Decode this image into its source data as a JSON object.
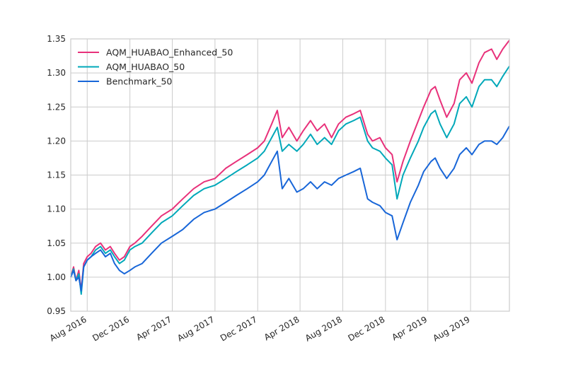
{
  "chart_data": {
    "type": "line",
    "title": "",
    "xlabel": "",
    "ylabel": "",
    "xlim": [
      "2016-06-15",
      "2019-11-20"
    ],
    "ylim": [
      0.95,
      1.35
    ],
    "grid": true,
    "legend_position": "upper-left",
    "x_ticks": [
      {
        "date": "2016-08-01",
        "label": "Aug 2016"
      },
      {
        "date": "2016-12-01",
        "label": "Dec 2016"
      },
      {
        "date": "2017-04-01",
        "label": "Apr 2017"
      },
      {
        "date": "2017-08-01",
        "label": "Aug 2017"
      },
      {
        "date": "2017-12-01",
        "label": "Dec 2017"
      },
      {
        "date": "2018-04-01",
        "label": "Apr 2018"
      },
      {
        "date": "2018-08-01",
        "label": "Aug 2018"
      },
      {
        "date": "2018-12-01",
        "label": "Dec 2018"
      },
      {
        "date": "2019-04-01",
        "label": "Apr 2019"
      },
      {
        "date": "2019-08-01",
        "label": "Aug 2019"
      }
    ],
    "y_ticks": [
      "0.95",
      "1.00",
      "1.05",
      "1.10",
      "1.15",
      "1.20",
      "1.25",
      "1.30",
      "1.35"
    ],
    "series": [
      {
        "name": "AQM_HUABAO_Enhanced_50",
        "color": "#e8317a",
        "points": [
          [
            "2016-06-15",
            1.0
          ],
          [
            "2016-06-23",
            1.015
          ],
          [
            "2016-06-30",
            0.995
          ],
          [
            "2016-07-08",
            1.01
          ],
          [
            "2016-07-15",
            0.98
          ],
          [
            "2016-07-22",
            1.02
          ],
          [
            "2016-08-01",
            1.03
          ],
          [
            "2016-08-12",
            1.035
          ],
          [
            "2016-08-25",
            1.045
          ],
          [
            "2016-09-08",
            1.05
          ],
          [
            "2016-09-22",
            1.04
          ],
          [
            "2016-10-06",
            1.045
          ],
          [
            "2016-10-18",
            1.035
          ],
          [
            "2016-11-01",
            1.025
          ],
          [
            "2016-11-15",
            1.03
          ],
          [
            "2016-12-01",
            1.045
          ],
          [
            "2016-12-15",
            1.05
          ],
          [
            "2017-01-05",
            1.06
          ],
          [
            "2017-02-01",
            1.075
          ],
          [
            "2017-03-01",
            1.09
          ],
          [
            "2017-04-01",
            1.1
          ],
          [
            "2017-05-01",
            1.115
          ],
          [
            "2017-06-01",
            1.13
          ],
          [
            "2017-07-01",
            1.14
          ],
          [
            "2017-08-01",
            1.145
          ],
          [
            "2017-09-01",
            1.16
          ],
          [
            "2017-10-01",
            1.17
          ],
          [
            "2017-11-01",
            1.18
          ],
          [
            "2017-12-01",
            1.19
          ],
          [
            "2017-12-20",
            1.2
          ],
          [
            "2018-01-10",
            1.225
          ],
          [
            "2018-01-26",
            1.245
          ],
          [
            "2018-02-09",
            1.205
          ],
          [
            "2018-02-28",
            1.22
          ],
          [
            "2018-03-23",
            1.2
          ],
          [
            "2018-04-10",
            1.215
          ],
          [
            "2018-05-01",
            1.23
          ],
          [
            "2018-05-20",
            1.215
          ],
          [
            "2018-06-10",
            1.225
          ],
          [
            "2018-06-30",
            1.205
          ],
          [
            "2018-07-20",
            1.225
          ],
          [
            "2018-08-10",
            1.235
          ],
          [
            "2018-09-01",
            1.24
          ],
          [
            "2018-09-20",
            1.245
          ],
          [
            "2018-10-11",
            1.21
          ],
          [
            "2018-10-25",
            1.2
          ],
          [
            "2018-11-15",
            1.205
          ],
          [
            "2018-12-01",
            1.19
          ],
          [
            "2018-12-20",
            1.18
          ],
          [
            "2019-01-03",
            1.14
          ],
          [
            "2019-01-20",
            1.17
          ],
          [
            "2019-02-10",
            1.2
          ],
          [
            "2019-03-05",
            1.23
          ],
          [
            "2019-03-20",
            1.25
          ],
          [
            "2019-04-10",
            1.275
          ],
          [
            "2019-04-22",
            1.28
          ],
          [
            "2019-05-06",
            1.26
          ],
          [
            "2019-05-25",
            1.235
          ],
          [
            "2019-06-15",
            1.255
          ],
          [
            "2019-07-01",
            1.29
          ],
          [
            "2019-07-20",
            1.3
          ],
          [
            "2019-08-05",
            1.285
          ],
          [
            "2019-08-25",
            1.315
          ],
          [
            "2019-09-10",
            1.33
          ],
          [
            "2019-09-30",
            1.335
          ],
          [
            "2019-10-15",
            1.32
          ],
          [
            "2019-11-01",
            1.335
          ],
          [
            "2019-11-20",
            1.348
          ]
        ]
      },
      {
        "name": "AQM_HUABAO_50",
        "color": "#00a8b9",
        "points": [
          [
            "2016-06-15",
            1.0
          ],
          [
            "2016-06-23",
            1.012
          ],
          [
            "2016-06-30",
            0.995
          ],
          [
            "2016-07-08",
            1.005
          ],
          [
            "2016-07-15",
            0.975
          ],
          [
            "2016-07-22",
            1.015
          ],
          [
            "2016-08-01",
            1.025
          ],
          [
            "2016-08-12",
            1.03
          ],
          [
            "2016-08-25",
            1.04
          ],
          [
            "2016-09-08",
            1.045
          ],
          [
            "2016-09-22",
            1.035
          ],
          [
            "2016-10-06",
            1.04
          ],
          [
            "2016-10-18",
            1.03
          ],
          [
            "2016-11-01",
            1.02
          ],
          [
            "2016-11-15",
            1.025
          ],
          [
            "2016-12-01",
            1.04
          ],
          [
            "2016-12-15",
            1.045
          ],
          [
            "2017-01-05",
            1.05
          ],
          [
            "2017-02-01",
            1.065
          ],
          [
            "2017-03-01",
            1.08
          ],
          [
            "2017-04-01",
            1.09
          ],
          [
            "2017-05-01",
            1.105
          ],
          [
            "2017-06-01",
            1.12
          ],
          [
            "2017-07-01",
            1.13
          ],
          [
            "2017-08-01",
            1.135
          ],
          [
            "2017-09-01",
            1.145
          ],
          [
            "2017-10-01",
            1.155
          ],
          [
            "2017-11-01",
            1.165
          ],
          [
            "2017-12-01",
            1.175
          ],
          [
            "2017-12-20",
            1.185
          ],
          [
            "2018-01-10",
            1.205
          ],
          [
            "2018-01-26",
            1.22
          ],
          [
            "2018-02-09",
            1.185
          ],
          [
            "2018-02-28",
            1.195
          ],
          [
            "2018-03-23",
            1.185
          ],
          [
            "2018-04-10",
            1.195
          ],
          [
            "2018-05-01",
            1.21
          ],
          [
            "2018-05-20",
            1.195
          ],
          [
            "2018-06-10",
            1.205
          ],
          [
            "2018-06-30",
            1.195
          ],
          [
            "2018-07-20",
            1.215
          ],
          [
            "2018-08-10",
            1.225
          ],
          [
            "2018-09-01",
            1.23
          ],
          [
            "2018-09-20",
            1.235
          ],
          [
            "2018-10-11",
            1.2
          ],
          [
            "2018-10-25",
            1.19
          ],
          [
            "2018-11-15",
            1.185
          ],
          [
            "2018-12-01",
            1.175
          ],
          [
            "2018-12-20",
            1.165
          ],
          [
            "2019-01-03",
            1.115
          ],
          [
            "2019-01-20",
            1.15
          ],
          [
            "2019-02-10",
            1.175
          ],
          [
            "2019-03-05",
            1.2
          ],
          [
            "2019-03-20",
            1.22
          ],
          [
            "2019-04-10",
            1.24
          ],
          [
            "2019-04-22",
            1.245
          ],
          [
            "2019-05-06",
            1.225
          ],
          [
            "2019-05-25",
            1.205
          ],
          [
            "2019-06-15",
            1.225
          ],
          [
            "2019-07-01",
            1.255
          ],
          [
            "2019-07-20",
            1.265
          ],
          [
            "2019-08-05",
            1.25
          ],
          [
            "2019-08-25",
            1.28
          ],
          [
            "2019-09-10",
            1.29
          ],
          [
            "2019-09-30",
            1.29
          ],
          [
            "2019-10-15",
            1.28
          ],
          [
            "2019-11-01",
            1.295
          ],
          [
            "2019-11-20",
            1.31
          ]
        ]
      },
      {
        "name": "Benchmark_50",
        "color": "#1866d8",
        "points": [
          [
            "2016-06-15",
            1.0
          ],
          [
            "2016-06-23",
            1.01
          ],
          [
            "2016-06-30",
            0.995
          ],
          [
            "2016-07-08",
            1.0
          ],
          [
            "2016-07-15",
            0.98
          ],
          [
            "2016-07-22",
            1.015
          ],
          [
            "2016-08-01",
            1.025
          ],
          [
            "2016-08-12",
            1.03
          ],
          [
            "2016-08-25",
            1.035
          ],
          [
            "2016-09-08",
            1.04
          ],
          [
            "2016-09-22",
            1.03
          ],
          [
            "2016-10-06",
            1.035
          ],
          [
            "2016-10-18",
            1.02
          ],
          [
            "2016-11-01",
            1.01
          ],
          [
            "2016-11-15",
            1.005
          ],
          [
            "2016-12-01",
            1.01
          ],
          [
            "2016-12-15",
            1.015
          ],
          [
            "2017-01-05",
            1.02
          ],
          [
            "2017-02-01",
            1.035
          ],
          [
            "2017-03-01",
            1.05
          ],
          [
            "2017-04-01",
            1.06
          ],
          [
            "2017-05-01",
            1.07
          ],
          [
            "2017-06-01",
            1.085
          ],
          [
            "2017-07-01",
            1.095
          ],
          [
            "2017-08-01",
            1.1
          ],
          [
            "2017-09-01",
            1.11
          ],
          [
            "2017-10-01",
            1.12
          ],
          [
            "2017-11-01",
            1.13
          ],
          [
            "2017-12-01",
            1.14
          ],
          [
            "2017-12-20",
            1.15
          ],
          [
            "2018-01-10",
            1.17
          ],
          [
            "2018-01-26",
            1.185
          ],
          [
            "2018-02-09",
            1.13
          ],
          [
            "2018-02-28",
            1.145
          ],
          [
            "2018-03-23",
            1.125
          ],
          [
            "2018-04-10",
            1.13
          ],
          [
            "2018-05-01",
            1.14
          ],
          [
            "2018-05-20",
            1.13
          ],
          [
            "2018-06-10",
            1.14
          ],
          [
            "2018-06-30",
            1.135
          ],
          [
            "2018-07-20",
            1.145
          ],
          [
            "2018-08-10",
            1.15
          ],
          [
            "2018-09-01",
            1.155
          ],
          [
            "2018-09-20",
            1.16
          ],
          [
            "2018-10-11",
            1.115
          ],
          [
            "2018-10-25",
            1.11
          ],
          [
            "2018-11-15",
            1.105
          ],
          [
            "2018-12-01",
            1.095
          ],
          [
            "2018-12-20",
            1.09
          ],
          [
            "2019-01-03",
            1.055
          ],
          [
            "2019-01-20",
            1.08
          ],
          [
            "2019-02-10",
            1.11
          ],
          [
            "2019-03-05",
            1.135
          ],
          [
            "2019-03-20",
            1.155
          ],
          [
            "2019-04-10",
            1.17
          ],
          [
            "2019-04-22",
            1.175
          ],
          [
            "2019-05-06",
            1.16
          ],
          [
            "2019-05-25",
            1.145
          ],
          [
            "2019-06-15",
            1.16
          ],
          [
            "2019-07-01",
            1.18
          ],
          [
            "2019-07-20",
            1.19
          ],
          [
            "2019-08-05",
            1.18
          ],
          [
            "2019-08-25",
            1.195
          ],
          [
            "2019-09-10",
            1.2
          ],
          [
            "2019-09-30",
            1.2
          ],
          [
            "2019-10-15",
            1.195
          ],
          [
            "2019-11-01",
            1.205
          ],
          [
            "2019-11-20",
            1.222
          ]
        ]
      }
    ]
  }
}
